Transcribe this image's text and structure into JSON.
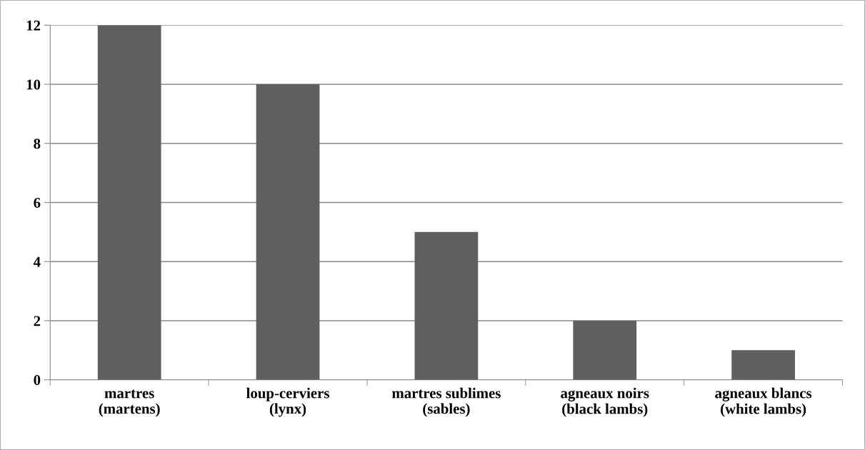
{
  "chart_data": {
    "type": "bar",
    "categories": [
      "martres\n(martens)",
      "loup-cerviers\n(lynx)",
      "martres sublimes\n(sables)",
      "agneaux noirs\n(black lambs)",
      "agneaux blancs\n(white lambs)"
    ],
    "values": [
      12,
      10,
      5,
      2,
      1
    ],
    "color": "#5f5f5f",
    "ylim": [
      0,
      12
    ],
    "yticks": [
      0,
      2,
      4,
      6,
      8,
      10,
      12
    ],
    "grid": "y",
    "legend": false
  }
}
